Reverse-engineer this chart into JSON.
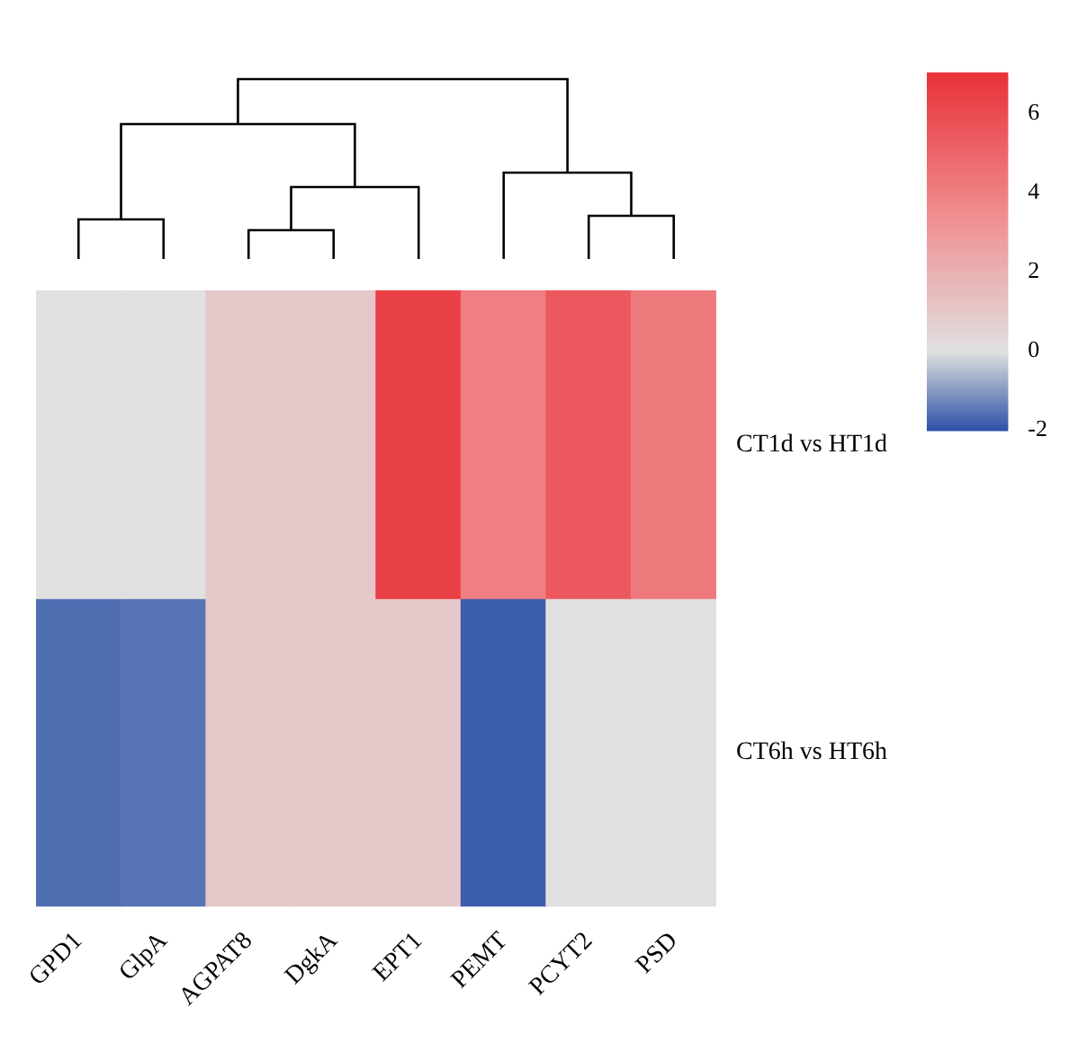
{
  "chart_data": {
    "type": "heatmap",
    "categories": [
      "GPD1",
      "GlpA",
      "AGPAT8",
      "DgkA",
      "EPT1",
      "PEMT",
      "PCYT2",
      "PSD"
    ],
    "y_categories": [
      "CT1d vs HT1d",
      "CT6h vs HT6h"
    ],
    "cells": [
      [
        0,
        0,
        1,
        1,
        6.5,
        4,
        5.5,
        4.2
      ],
      [
        -1.6,
        -1.5,
        1,
        1,
        1,
        -1.8,
        0,
        0
      ]
    ],
    "clim": [
      -2,
      7
    ],
    "cticks": [
      -2,
      0,
      2,
      4,
      6
    ]
  }
}
